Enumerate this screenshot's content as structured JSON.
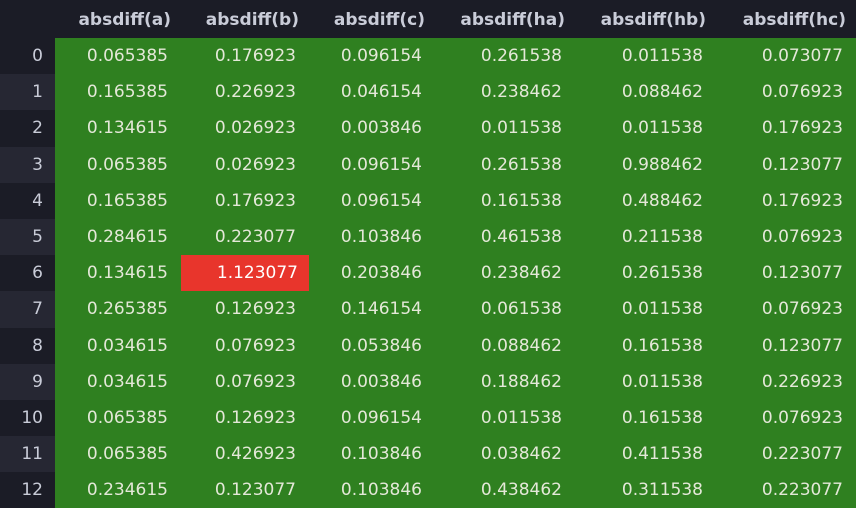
{
  "table": {
    "columns": [
      "",
      "absdiff(a)",
      "absdiff(b)",
      "absdiff(c)",
      "absdiff(ha)",
      "absdiff(hb)",
      "absdiff(hc)"
    ],
    "rows": [
      {
        "index": "0",
        "cells": [
          "0.065385",
          "0.176923",
          "0.096154",
          "0.261538",
          "0.011538",
          "0.073077"
        ]
      },
      {
        "index": "1",
        "cells": [
          "0.165385",
          "0.226923",
          "0.046154",
          "0.238462",
          "0.088462",
          "0.076923"
        ]
      },
      {
        "index": "2",
        "cells": [
          "0.134615",
          "0.026923",
          "0.003846",
          "0.011538",
          "0.011538",
          "0.176923"
        ]
      },
      {
        "index": "3",
        "cells": [
          "0.065385",
          "0.026923",
          "0.096154",
          "0.261538",
          "0.988462",
          "0.123077"
        ]
      },
      {
        "index": "4",
        "cells": [
          "0.165385",
          "0.176923",
          "0.096154",
          "0.161538",
          "0.488462",
          "0.176923"
        ]
      },
      {
        "index": "5",
        "cells": [
          "0.284615",
          "0.223077",
          "0.103846",
          "0.461538",
          "0.211538",
          "0.076923"
        ]
      },
      {
        "index": "6",
        "cells": [
          "0.134615",
          "1.123077",
          "0.203846",
          "0.238462",
          "0.261538",
          "0.123077"
        ]
      },
      {
        "index": "7",
        "cells": [
          "0.265385",
          "0.126923",
          "0.146154",
          "0.061538",
          "0.011538",
          "0.076923"
        ]
      },
      {
        "index": "8",
        "cells": [
          "0.034615",
          "0.076923",
          "0.053846",
          "0.088462",
          "0.161538",
          "0.123077"
        ]
      },
      {
        "index": "9",
        "cells": [
          "0.034615",
          "0.076923",
          "0.003846",
          "0.188462",
          "0.011538",
          "0.226923"
        ]
      },
      {
        "index": "10",
        "cells": [
          "0.065385",
          "0.126923",
          "0.096154",
          "0.011538",
          "0.161538",
          "0.076923"
        ]
      },
      {
        "index": "11",
        "cells": [
          "0.065385",
          "0.426923",
          "0.103846",
          "0.038462",
          "0.411538",
          "0.223077"
        ]
      },
      {
        "index": "12",
        "cells": [
          "0.234615",
          "0.123077",
          "0.103846",
          "0.438462",
          "0.311538",
          "0.223077"
        ]
      }
    ],
    "highlighted_cell": {
      "row": 6,
      "column": 1
    },
    "colors": {
      "background": "#1b1c26",
      "cell_background": "#2f8020",
      "highlight_background": "#e8352c",
      "text": "#c9ccd8"
    }
  }
}
